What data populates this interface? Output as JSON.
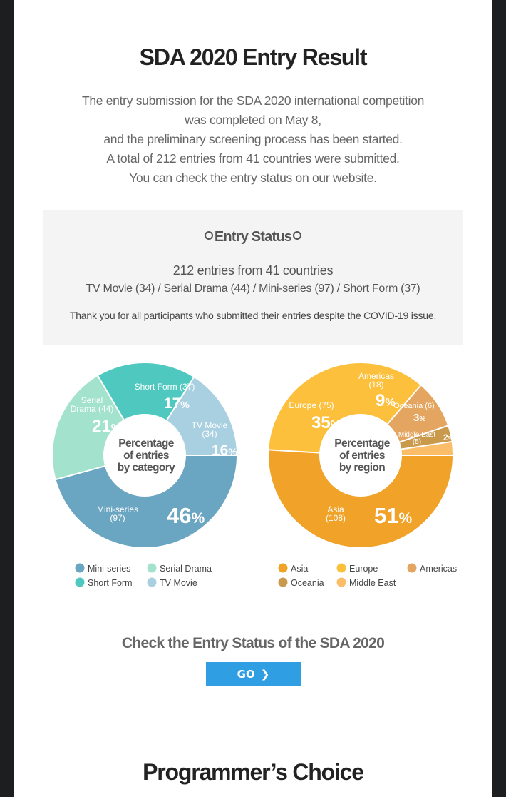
{
  "page": {
    "title": "SDA 2020 Entry Result",
    "intro_lines": [
      "The entry submission for the SDA 2020 international competition",
      "was completed on May 8,",
      "and the preliminary screening process has been started.",
      "A total of 212 entries from 41 countries were submitted.",
      "You can check the entry status on our website."
    ]
  },
  "status": {
    "title": "Entry Status",
    "total": "212 entries from 41 countries",
    "breakdown": "TV Movie (34) / Serial Drama (44) / Mini-series (97) / Short Form (37)",
    "thanks": "Thank you for all participants who submitted their entries despite the COVID-19 issue."
  },
  "chart_data": [
    {
      "type": "pie",
      "title": "Percentage of entries by category",
      "center_lines": [
        "Percentage",
        "of entries",
        "by category"
      ],
      "slices": [
        {
          "label": "Mini-series",
          "count": 97,
          "percent": 46,
          "color": "#6aa5c1"
        },
        {
          "label": "Serial Drama",
          "count": 44,
          "percent": 21,
          "color": "#a3e2cc"
        },
        {
          "label": "Short Form",
          "count": 37,
          "percent": 17,
          "color": "#4fc9bf"
        },
        {
          "label": "TV Movie",
          "count": 34,
          "percent": 16,
          "color": "#a9d0e0"
        }
      ],
      "slice_text": {
        "Mini-series": {
          "name_lines": [
            "Mini-series",
            "(97)"
          ]
        },
        "Serial Drama": {
          "name_lines": [
            "Serial",
            "Drama (44)"
          ]
        },
        "Short Form": {
          "name_lines": [
            "Short Form (37)"
          ]
        },
        "TV Movie": {
          "name_lines": [
            "TV Movie",
            "(34)"
          ]
        }
      },
      "legend": [
        "Mini-series",
        "Serial Drama",
        "Short Form",
        "TV Movie"
      ],
      "legend_placement": "bottom"
    },
    {
      "type": "pie",
      "title": "Percentage of entries by region",
      "center_lines": [
        "Percentage",
        "of entries",
        "by region"
      ],
      "slices": [
        {
          "label": "Asia",
          "count": 108,
          "percent": 51,
          "color": "#f0a229"
        },
        {
          "label": "Europe",
          "count": 75,
          "percent": 35,
          "color": "#fcc03d"
        },
        {
          "label": "Americas",
          "count": 18,
          "percent": 9,
          "color": "#e3a55f"
        },
        {
          "label": "Oceania",
          "count": 6,
          "percent": 3,
          "color": "#c99a4c"
        },
        {
          "label": "Middle East",
          "count": 5,
          "percent": 2,
          "color": "#fbbd68"
        }
      ],
      "slice_text": {
        "Asia": {
          "name_lines": [
            "Asia",
            "(108)"
          ]
        },
        "Europe": {
          "name_lines": [
            "Europe (75)"
          ]
        },
        "Americas": {
          "name_lines": [
            "Americas",
            "(18)"
          ]
        },
        "Oceania": {
          "name_lines": [
            "Oceania (6)"
          ]
        },
        "Middle East": {
          "name_lines": [
            "Middle East",
            "(5)"
          ]
        }
      },
      "legend": [
        "Asia",
        "Europe",
        "Americas",
        "Oceania",
        "Middle East"
      ],
      "legend_placement": "bottom"
    }
  ],
  "cta": {
    "title": "Check the Entry Status of the SDA 2020",
    "button_label": "GO",
    "button_icon": "chevron-right-icon"
  },
  "next_section": {
    "title": "Programmer’s Choice"
  }
}
